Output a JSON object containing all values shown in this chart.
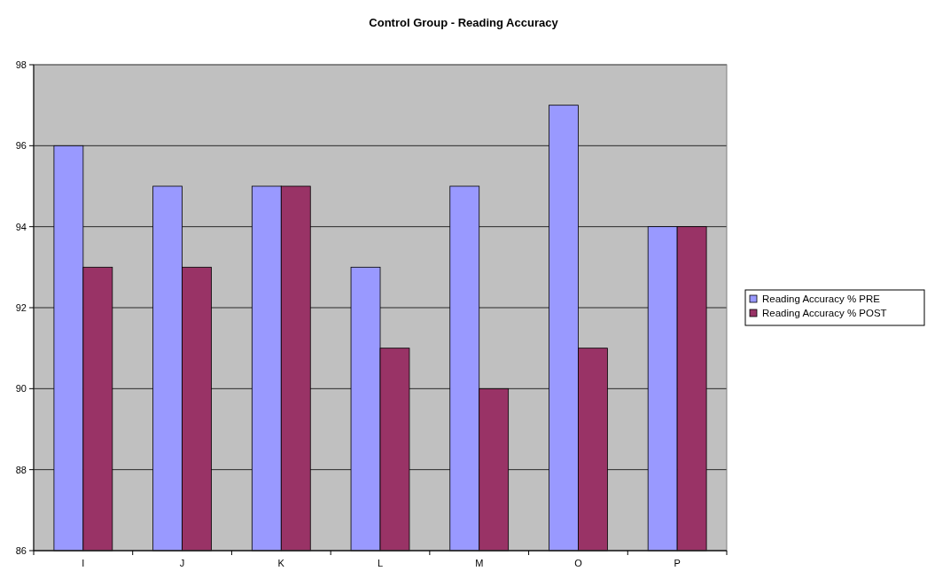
{
  "chart_data": {
    "type": "bar",
    "title": "Control Group - Reading Accuracy",
    "categories": [
      "I",
      "J",
      "K",
      "L",
      "M",
      "O",
      "P"
    ],
    "series": [
      {
        "name": "Reading Accuracy % PRE",
        "color": "#9999ff",
        "values": [
          96,
          95,
          95,
          93,
          95,
          97,
          94
        ]
      },
      {
        "name": "Reading Accuracy % POST",
        "color": "#993366",
        "values": [
          93,
          93,
          95,
          91,
          90,
          91,
          94
        ]
      }
    ],
    "ylim": [
      86,
      98
    ],
    "yticks": [
      86,
      88,
      90,
      92,
      94,
      96,
      98
    ],
    "grid": "y",
    "legend": "right"
  }
}
